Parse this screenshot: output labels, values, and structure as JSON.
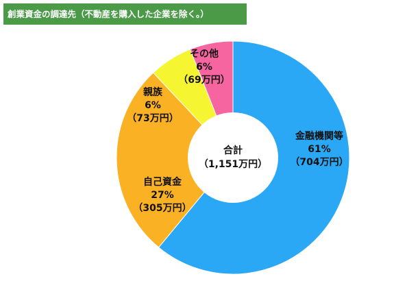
{
  "title": "創業資金の調達先（不動産を購入した企業を除く。）",
  "center_label": {
    "line1": "合計",
    "line2": "（1,151万円）"
  },
  "chart_data": {
    "type": "pie",
    "donut": true,
    "title": "創業資金の調達先（不動産を購入した企業を除く。）",
    "total_label": "合計（1,151万円）",
    "unit": "万円",
    "slices": [
      {
        "name": "金融機関等",
        "percent": 61,
        "value": 704,
        "percent_label": "61%",
        "value_label": "（704万円）",
        "color": "#2aa8f5"
      },
      {
        "name": "自己資金",
        "percent": 27,
        "value": 305,
        "percent_label": "27%",
        "value_label": "（305万円）",
        "color": "#fbb124"
      },
      {
        "name": "親族",
        "percent": 6,
        "value": 73,
        "percent_label": "6%",
        "value_label": "（73万円）",
        "color": "#f5f531"
      },
      {
        "name": "その他",
        "percent": 6,
        "value": 69,
        "percent_label": "6%",
        "value_label": "（69万円）",
        "color": "#f765a1"
      }
    ]
  }
}
